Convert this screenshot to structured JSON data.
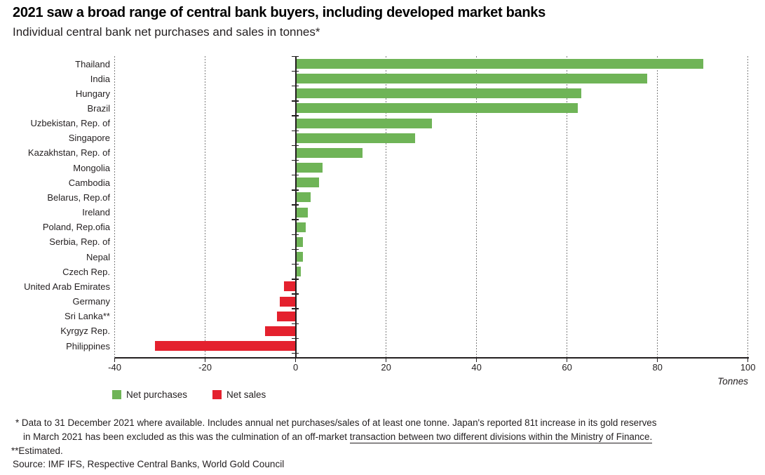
{
  "title": "2021 saw a broad range of central bank buyers, including developed market banks",
  "subtitle": "Individual central bank net purchases and sales in tonnes*",
  "chart_data": {
    "type": "bar",
    "orientation": "horizontal",
    "title": "2021 saw a broad range of central bank buyers, including developed market banks",
    "subtitle": "Individual central bank net purchases and sales in tonnes*",
    "categories": [
      "Thailand",
      "India",
      "Hungary",
      "Brazil",
      "Uzbekistan, Rep. of",
      "Singapore",
      "Kazakhstan, Rep. of",
      "Mongolia",
      "Cambodia",
      "Belarus, Rep.of",
      "Ireland",
      "Poland, Rep.ofia",
      "Serbia, Rep. of",
      "Nepal",
      "Czech Rep.",
      "United Arab Emirates",
      "Germany",
      "Sri Lanka**",
      "Kyrgyz Rep.",
      "Philippines"
    ],
    "values": [
      90,
      77.5,
      63,
      62.3,
      30,
      26.3,
      14.6,
      5.8,
      5,
      3.1,
      2.6,
      2.1,
      1.5,
      1.5,
      1,
      -2.4,
      -3.3,
      -4,
      -6.6,
      -31
    ],
    "xlabel": "Tonnes",
    "xlim": [
      -40,
      100
    ],
    "xticks": [
      -40,
      -20,
      0,
      20,
      40,
      60,
      80,
      100
    ],
    "grid": "vertical-dotted-at-each-tick-except-zero",
    "legend_position": "bottom-left",
    "series": [
      {
        "name": "Net purchases",
        "color": "#6fb457",
        "applies_to": "values >= 0"
      },
      {
        "name": "Net sales",
        "color": "#e4212e",
        "applies_to": "values < 0"
      }
    ]
  },
  "legend": {
    "items": [
      {
        "label": "Net purchases",
        "color": "#6fb457"
      },
      {
        "label": "Net sales",
        "color": "#e4212e"
      }
    ]
  },
  "axis": {
    "unit_label": "Tonnes"
  },
  "footnotes": {
    "line1": "* Data to 31 December 2021 where available. Includes annual net purchases/sales of at least one tonne. Japan's reported 81t increase in its gold reserves",
    "line2_prefix": "in March 2021 has been excluded as this was the culmination of an off-market ",
    "line2_underlined": "transaction between two different divisions within the Ministry of Finance.",
    "line3": "**Estimated."
  },
  "source": "Source: IMF IFS, Respective Central Banks, World Gold Council",
  "colors": {
    "net_purchases": "#6fb457",
    "net_sales": "#e4212e",
    "text": "#231f20",
    "gridline": "#7d7d7d"
  }
}
